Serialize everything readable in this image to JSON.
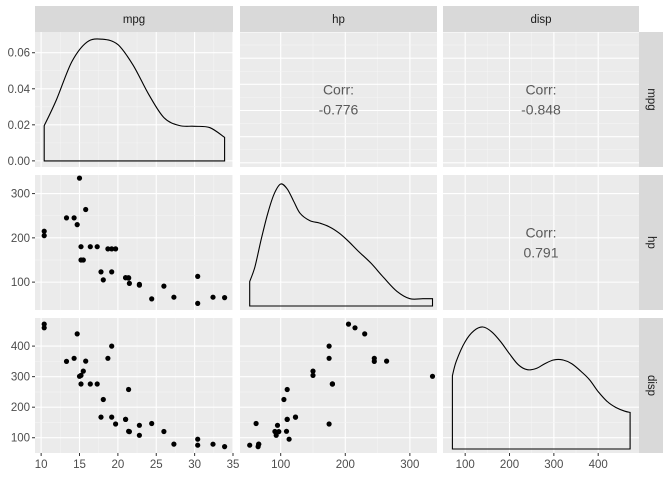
{
  "chart_data": {
    "type": "scatter-matrix",
    "variables": [
      "mpg",
      "hp",
      "disp"
    ],
    "grid": true,
    "axes": {
      "mpg": {
        "range": [
          9.2,
          35.0
        ],
        "ticks": [
          10,
          15,
          20,
          25,
          30,
          35
        ]
      },
      "hp": {
        "range": [
          37.0,
          342.0
        ],
        "ticks": [
          100,
          200,
          300
        ]
      },
      "disp": {
        "range": [
          50.0,
          492.0
        ],
        "ticks": [
          100,
          200,
          300,
          400
        ]
      }
    },
    "density_axis": {
      "range": [
        -0.0034,
        0.0715
      ],
      "ticks": [
        0.0,
        0.02,
        0.04,
        0.06
      ],
      "tick_labels": [
        "0.00",
        "0.02",
        "0.04",
        "0.06"
      ]
    },
    "densities": {
      "mpg": {
        "x": [
          10.4,
          12.0,
          14.0,
          16.0,
          18.0,
          20.0,
          22.0,
          24.0,
          26.0,
          28.0,
          30.0,
          32.0,
          33.9
        ],
        "y": [
          0.0195,
          0.034,
          0.055,
          0.066,
          0.0675,
          0.0645,
          0.053,
          0.037,
          0.024,
          0.0196,
          0.0192,
          0.0184,
          0.013
        ]
      },
      "hp": {
        "x": [
          52,
          60,
          70,
          80,
          90,
          100,
          110,
          120,
          130,
          145,
          160,
          175,
          190,
          205,
          220,
          240,
          260,
          280,
          300,
          320,
          335
        ],
        "y": [
          0.2,
          0.32,
          0.55,
          0.76,
          0.92,
          1.0,
          0.96,
          0.86,
          0.76,
          0.7,
          0.68,
          0.65,
          0.6,
          0.53,
          0.45,
          0.35,
          0.23,
          0.12,
          0.06,
          0.06,
          0.06
        ]
      },
      "disp": {
        "x": [
          71.1,
          80,
          100,
          120,
          140,
          160,
          180,
          200,
          220,
          240,
          260,
          280,
          300,
          320,
          340,
          360,
          380,
          400,
          420,
          440,
          460,
          472
        ],
        "y": [
          0.6,
          0.72,
          0.88,
          0.97,
          1.0,
          0.96,
          0.88,
          0.78,
          0.69,
          0.65,
          0.66,
          0.7,
          0.73,
          0.73,
          0.7,
          0.64,
          0.57,
          0.47,
          0.39,
          0.34,
          0.31,
          0.3
        ]
      }
    },
    "correlations": [
      {
        "row": "mpg",
        "col": "hp",
        "label": "Corr:",
        "value": "-0.776"
      },
      {
        "row": "mpg",
        "col": "disp",
        "label": "Corr:",
        "value": "-0.848"
      },
      {
        "row": "hp",
        "col": "disp",
        "label": "Corr:",
        "value": "0.791"
      }
    ],
    "points": {
      "mpg": [
        21.0,
        21.0,
        22.8,
        21.4,
        18.7,
        18.1,
        14.3,
        24.4,
        22.8,
        19.2,
        17.8,
        16.4,
        17.3,
        15.2,
        10.4,
        10.4,
        14.7,
        32.4,
        30.4,
        33.9,
        21.5,
        15.5,
        15.2,
        13.3,
        19.2,
        27.3,
        26.0,
        30.4,
        15.8,
        19.7,
        15.0,
        21.4
      ],
      "hp": [
        110,
        110,
        93,
        110,
        175,
        105,
        245,
        62,
        95,
        123,
        123,
        180,
        180,
        180,
        205,
        215,
        230,
        66,
        52,
        65,
        97,
        150,
        150,
        245,
        175,
        66,
        91,
        113,
        264,
        175,
        335,
        109
      ],
      "disp": [
        160,
        160,
        108,
        258,
        360,
        225,
        360,
        146.7,
        140.8,
        167.6,
        167.6,
        275.8,
        275.8,
        275.8,
        472,
        460,
        440,
        78.7,
        75.7,
        71.1,
        120.1,
        318,
        304,
        350,
        400,
        79,
        120.3,
        95.1,
        351,
        145,
        301,
        121
      ]
    }
  }
}
